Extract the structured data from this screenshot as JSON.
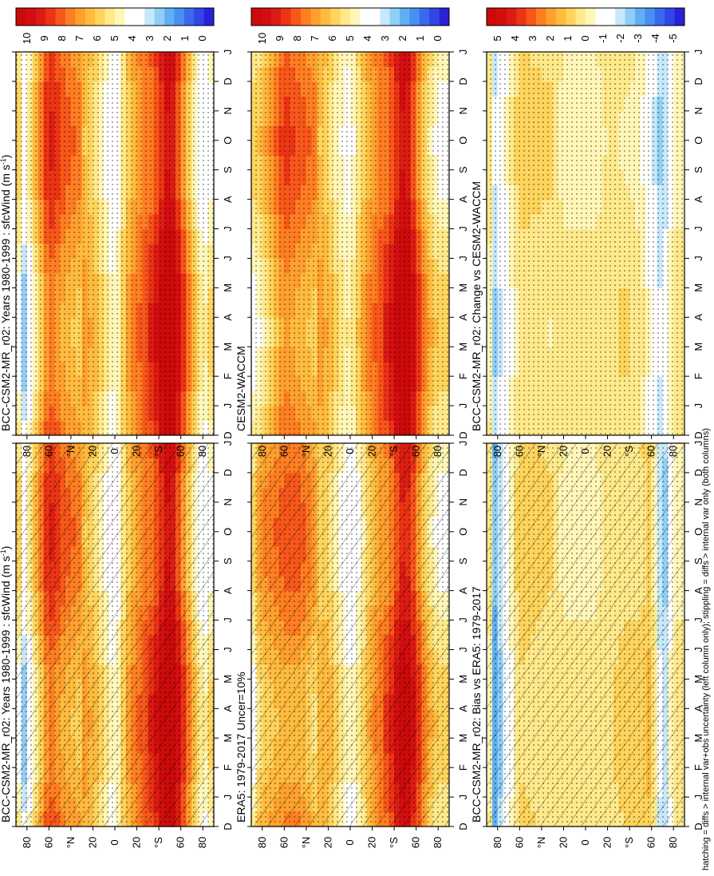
{
  "footnote": "hatching = diffs > internal var+obs uncertainty (left column only); stippling = diffs > internal var only (both columns)",
  "colors": {
    "scale_0_10": [
      "#2a21d6",
      "#3046e6",
      "#3a68ee",
      "#4a8ef2",
      "#5fb0f2",
      "#8fcff5",
      "#c7e8fa",
      "#ffffff",
      "#ffffff",
      "#fff6b8",
      "#ffe98a",
      "#ffd45c",
      "#ffbb3e",
      "#ffa02e",
      "#ff7e22",
      "#f8571a",
      "#ec3414",
      "#dc1c12",
      "#d40e10",
      "#cc0a0a"
    ],
    "scale_diff": [
      "#2a21d6",
      "#3046e6",
      "#3a68ee",
      "#4a8ef2",
      "#5fb0f2",
      "#8fcff5",
      "#c7e8fa",
      "#ffffff",
      "#ffffff",
      "#fff6b8",
      "#ffe98a",
      "#ffd45c",
      "#ffbb3e",
      "#ffa02e",
      "#ff7e22",
      "#f8571a",
      "#ec3414",
      "#dc1c12",
      "#d40e10",
      "#cc0a0a"
    ]
  },
  "chart_data": [
    {
      "type": "heatmap",
      "panel": "top-left",
      "title": "BCC-CSM2-MR_r02: Years 1980-1999 : sfcWind (m s",
      "title_sup": "-1",
      "title_close": ")",
      "xlabel": "",
      "ylabel": "",
      "x_ticks": [
        "D",
        "J",
        "F",
        "M",
        "A",
        "M",
        "J",
        "J",
        "A",
        "S",
        "O",
        "N",
        "D",
        "J"
      ],
      "y_ticks": [
        "80",
        "60",
        "°N",
        "20",
        "0",
        "20",
        "°S",
        "60",
        "80"
      ],
      "y_range": [
        -90,
        90
      ],
      "colorbar_labels": [
        "10",
        "9",
        "8",
        "7",
        "6",
        "5",
        "4",
        "3",
        "2",
        "1",
        "0"
      ],
      "bands_lat_to_value": [
        [
          85,
          3
        ],
        [
          75,
          5
        ],
        [
          60,
          8
        ],
        [
          45,
          7
        ],
        [
          30,
          6.5
        ],
        [
          20,
          6
        ],
        [
          10,
          5
        ],
        [
          0,
          4
        ],
        [
          -10,
          6
        ],
        [
          -20,
          7
        ],
        [
          -35,
          8
        ],
        [
          -50,
          10
        ],
        [
          -60,
          8
        ],
        [
          -70,
          6
        ],
        [
          -80,
          4
        ],
        [
          -88,
          5
        ]
      ],
      "hatched": true,
      "stippled": true
    },
    {
      "type": "heatmap",
      "panel": "top-right",
      "title": "BCC-CSM2-MR_r02: Years 1980-1999 : sfcWind (m s",
      "title_sup": "-1",
      "title_close": ")",
      "xlabel": "",
      "ylabel": "",
      "x_ticks": [
        "D",
        "J",
        "F",
        "M",
        "A",
        "M",
        "J",
        "J",
        "A",
        "S",
        "O",
        "N",
        "D",
        "J"
      ],
      "y_ticks": [
        "80",
        "60",
        "°N",
        "20",
        "0",
        "20",
        "°S",
        "60",
        "80"
      ],
      "y_range": [
        -90,
        90
      ],
      "colorbar_labels": [
        "10",
        "9",
        "8",
        "7",
        "6",
        "5",
        "4",
        "3",
        "2",
        "1",
        "0"
      ],
      "bands_lat_to_value": [
        [
          85,
          3
        ],
        [
          75,
          5
        ],
        [
          60,
          8
        ],
        [
          45,
          7
        ],
        [
          30,
          6.5
        ],
        [
          20,
          6
        ],
        [
          10,
          5
        ],
        [
          0,
          4
        ],
        [
          -10,
          6
        ],
        [
          -20,
          7
        ],
        [
          -35,
          8
        ],
        [
          -50,
          10
        ],
        [
          -60,
          8
        ],
        [
          -70,
          6
        ],
        [
          -80,
          4
        ],
        [
          -88,
          5
        ]
      ],
      "hatched": false,
      "stippled": true
    },
    {
      "type": "heatmap",
      "panel": "middle-left",
      "title": "ERA5: 1979-2017 Uncer=10%",
      "title_sup": "",
      "title_close": "",
      "xlabel": "",
      "ylabel": "",
      "x_ticks": [
        "D",
        "J",
        "F",
        "M",
        "A",
        "M",
        "J",
        "J",
        "A",
        "S",
        "O",
        "N",
        "D",
        "J"
      ],
      "y_ticks": [
        "80",
        "60",
        "°N",
        "20",
        "0",
        "20",
        "°S",
        "60",
        "80"
      ],
      "y_range": [
        -90,
        90
      ],
      "colorbar_labels": [
        "10",
        "9",
        "8",
        "7",
        "6",
        "5",
        "4",
        "3",
        "2",
        "1",
        "0"
      ],
      "bands_lat_to_value": [
        [
          85,
          6
        ],
        [
          75,
          6.5
        ],
        [
          60,
          7
        ],
        [
          45,
          7
        ],
        [
          30,
          6
        ],
        [
          20,
          6
        ],
        [
          10,
          5
        ],
        [
          0,
          4
        ],
        [
          -10,
          5
        ],
        [
          -20,
          6.5
        ],
        [
          -35,
          7.5
        ],
        [
          -50,
          9.5
        ],
        [
          -60,
          8
        ],
        [
          -70,
          6
        ],
        [
          -80,
          5
        ],
        [
          -88,
          5
        ]
      ],
      "hatched": true,
      "stippled": true
    },
    {
      "type": "heatmap",
      "panel": "middle-right",
      "title": "CESM2-WACCM",
      "title_sup": "",
      "title_close": "",
      "xlabel": "",
      "ylabel": "",
      "x_ticks": [
        "D",
        "J",
        "F",
        "M",
        "A",
        "M",
        "J",
        "J",
        "A",
        "S",
        "O",
        "N",
        "D",
        "J"
      ],
      "y_ticks": [
        "80",
        "60",
        "°N",
        "20",
        "0",
        "20",
        "°S",
        "60",
        "80"
      ],
      "y_range": [
        -90,
        90
      ],
      "colorbar_labels": [
        "10",
        "9",
        "8",
        "7",
        "6",
        "5",
        "4",
        "3",
        "2",
        "1",
        "0"
      ],
      "bands_lat_to_value": [
        [
          85,
          5
        ],
        [
          75,
          6
        ],
        [
          60,
          7.5
        ],
        [
          45,
          7
        ],
        [
          30,
          6.5
        ],
        [
          20,
          6
        ],
        [
          10,
          5
        ],
        [
          0,
          4.5
        ],
        [
          -10,
          6
        ],
        [
          -20,
          7
        ],
        [
          -35,
          8
        ],
        [
          -50,
          10
        ],
        [
          -60,
          8
        ],
        [
          -70,
          6
        ],
        [
          -80,
          5
        ],
        [
          -88,
          5
        ]
      ],
      "hatched": false,
      "stippled": true
    },
    {
      "type": "heatmap",
      "panel": "bottom-left",
      "title": "BCC-CSM2-MR_r02: Bias vs ERA5: 1979-2017",
      "title_sup": "",
      "title_close": "",
      "xlabel": "",
      "ylabel": "",
      "x_ticks": [
        "D",
        "J",
        "F",
        "M",
        "A",
        "M",
        "J",
        "J",
        "A",
        "S",
        "O",
        "N",
        "D",
        "J"
      ],
      "y_ticks": [
        "80",
        "60",
        "°N",
        "20",
        "0",
        "20",
        "°S",
        "60",
        "80"
      ],
      "y_range": [
        -90,
        90
      ],
      "colorbar_labels": [
        "5",
        "4",
        "3",
        "2",
        "1",
        "0",
        "-1",
        "-2",
        "-3",
        "-4",
        "-5"
      ],
      "bands_lat_to_value": [
        [
          85,
          -3
        ],
        [
          75,
          -1.5
        ],
        [
          60,
          0.7
        ],
        [
          45,
          0.5
        ],
        [
          30,
          0.3
        ],
        [
          20,
          0
        ],
        [
          10,
          0
        ],
        [
          0,
          0
        ],
        [
          -10,
          0
        ],
        [
          -20,
          0.3
        ],
        [
          -35,
          0.5
        ],
        [
          -50,
          0.5
        ],
        [
          -60,
          1
        ],
        [
          -70,
          -2.5
        ],
        [
          -80,
          0
        ],
        [
          -88,
          0
        ]
      ],
      "hatched": true,
      "stippled": true
    },
    {
      "type": "heatmap",
      "panel": "bottom-right",
      "title": "BCC-CSM2-MR_r02: Change vs CESM2-WACCM",
      "title_sup": "",
      "title_close": "",
      "xlabel": "",
      "ylabel": "",
      "x_ticks": [
        "D",
        "J",
        "F",
        "M",
        "A",
        "M",
        "J",
        "J",
        "A",
        "S",
        "O",
        "N",
        "D",
        "J"
      ],
      "y_ticks": [
        "80",
        "60",
        "°N",
        "20",
        "0",
        "20",
        "°S",
        "60",
        "80"
      ],
      "y_range": [
        -90,
        90
      ],
      "colorbar_labels": [
        "5",
        "4",
        "3",
        "2",
        "1",
        "0",
        "-1",
        "-2",
        "-3",
        "-4",
        "-5"
      ],
      "bands_lat_to_value": [
        [
          85,
          -2
        ],
        [
          75,
          -1
        ],
        [
          60,
          0.5
        ],
        [
          45,
          0.4
        ],
        [
          30,
          0.3
        ],
        [
          20,
          0
        ],
        [
          10,
          0
        ],
        [
          0,
          0
        ],
        [
          -10,
          0
        ],
        [
          -20,
          0.2
        ],
        [
          -35,
          0.3
        ],
        [
          -50,
          0
        ],
        [
          -60,
          -1
        ],
        [
          -70,
          -2
        ],
        [
          -80,
          0
        ],
        [
          -88,
          0
        ]
      ],
      "hatched": false,
      "stippled": true
    }
  ]
}
